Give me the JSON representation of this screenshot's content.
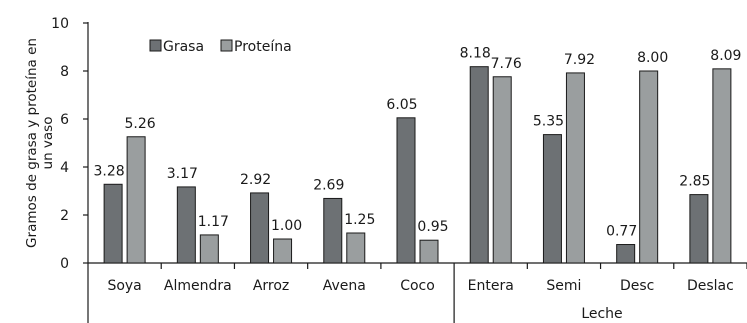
{
  "chart_data": {
    "type": "bar",
    "ylabel_lines": [
      "Gramos de grasa y proteína en",
      "un vaso"
    ],
    "ylim": [
      0,
      10
    ],
    "yticks": [
      0,
      2,
      4,
      6,
      8,
      10
    ],
    "categories": [
      "Soya",
      "Almendra",
      "Arroz",
      "Avena",
      "Coco",
      "Entera",
      "Semi",
      "Desc",
      "Deslac"
    ],
    "group_label": "Leche",
    "grid": false,
    "legend_position": "top-left",
    "series": [
      {
        "name": "Grasa",
        "color": "#6d7174",
        "values": [
          3.28,
          3.17,
          2.92,
          2.69,
          6.05,
          8.18,
          5.35,
          0.77,
          2.85
        ],
        "labels": [
          "3.28",
          "3.17",
          "2.92",
          "2.69",
          "6.05",
          "8.18",
          "5.35",
          "0.77",
          "2.85"
        ]
      },
      {
        "name": "Proteína",
        "color": "#9a9e9f",
        "values": [
          5.26,
          1.17,
          1.0,
          1.25,
          0.95,
          7.76,
          7.92,
          8.0,
          8.09
        ],
        "labels": [
          "5.26",
          "1.17",
          "1.00",
          "1.25",
          "0.95",
          "7.76",
          "7.92",
          "8.00",
          "8.09"
        ]
      }
    ]
  }
}
